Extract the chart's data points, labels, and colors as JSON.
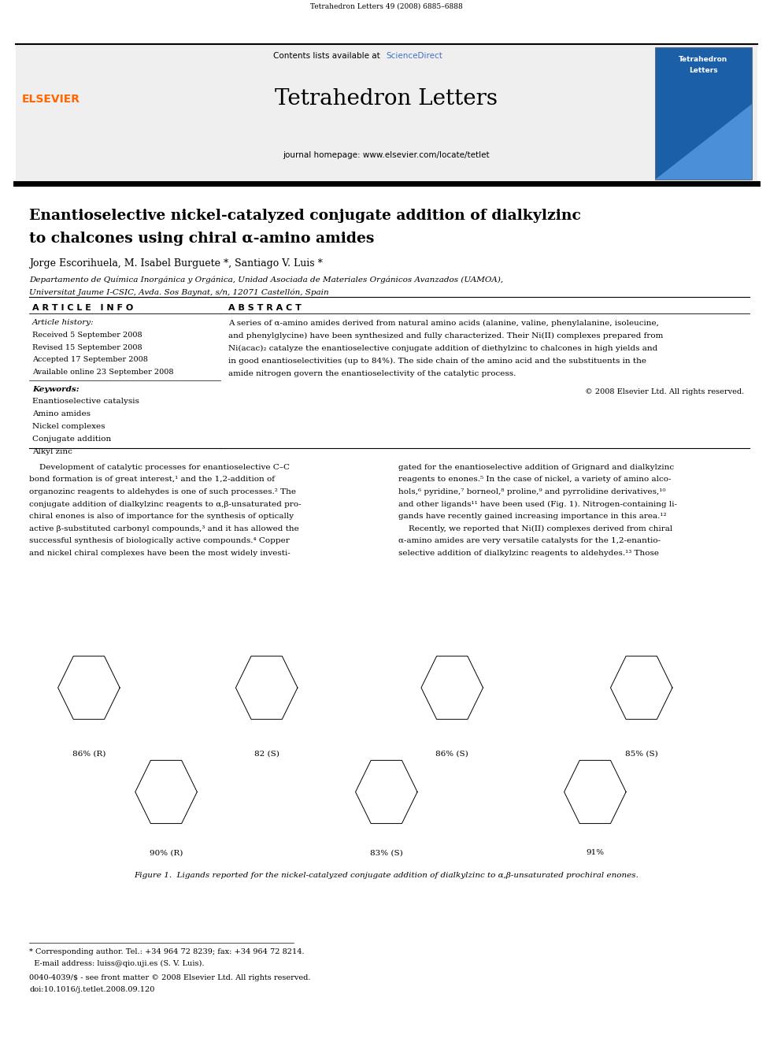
{
  "page_width": 9.92,
  "page_height": 13.23,
  "bg_color": "#ffffff",
  "header_top_text": "Tetrahedron Letters 49 (2008) 6885–6888",
  "journal_name": "Tetrahedron Letters",
  "journal_homepage": "journal homepage: www.elsevier.com/locate/tetlet",
  "sciencedirect_color": "#4472c4",
  "article_title_line1": "Enantioselective nickel-catalyzed conjugate addition of dialkylzinc",
  "article_title_line2": "to chalcones using chiral α-amino amides",
  "authors": "Jorge Escorihuela, M. Isabel Burguete *, Santiago V. Luis *",
  "affiliation1": "Departamento de Química Inorgánica y Orgánica, Unidad Asociada de Materiales Orgánicos Avanzados (UAMOA),",
  "affiliation2": "Universitat Jaume I-CSIC, Avda. Sos Baynat, s/n, 12071 Castellón, Spain",
  "article_info_header": "A R T I C L E   I N F O",
  "abstract_header": "A B S T R A C T",
  "article_history_label": "Article history:",
  "received": "Received 5 September 2008",
  "revised": "Revised 15 September 2008",
  "accepted": "Accepted 17 September 2008",
  "available": "Available online 23 September 2008",
  "keywords_label": "Keywords:",
  "keywords": [
    "Enantioselective catalysis",
    "Amino amides",
    "Nickel complexes",
    "Conjugate addition",
    "Alkyl zinc"
  ],
  "abstract_text_lines": [
    "A series of α-amino amides derived from natural amino acids (alanine, valine, phenylalanine, isoleucine,",
    "and phenylglycine) have been synthesized and fully characterized. Their Ni(II) complexes prepared from",
    "Ni(acac)₂ catalyze the enantioselective conjugate addition of diethylzinc to chalcones in high yields and",
    "in good enantioselectivities (up to 84%). The side chain of the amino acid and the substituents in the",
    "amide nitrogen govern the enantioselectivity of the catalytic process."
  ],
  "copyright": "© 2008 Elsevier Ltd. All rights reserved.",
  "body_col1_lines": [
    "    Development of catalytic processes for enantioselective C–C",
    "bond formation is of great interest,¹ and the 1,2-addition of",
    "organozinc reagents to aldehydes is one of such processes.² The",
    "conjugate addition of dialkylzinc reagents to α,β-unsaturated pro-",
    "chiral enones is also of importance for the synthesis of optically",
    "active β-substituted carbonyl compounds,³ and it has allowed the",
    "successful synthesis of biologically active compounds.⁴ Copper",
    "and nickel chiral complexes have been the most widely investi-"
  ],
  "body_col2_lines": [
    "gated for the enantioselective addition of Grignard and dialkylzinc",
    "reagents to enones.⁵ In the case of nickel, a variety of amino alco-",
    "hols,⁶ pyridine,⁷ borneol,⁸ proline,⁹ and pyrrolidine derivatives,¹⁰",
    "and other ligands¹¹ have been used (Fig. 1). Nitrogen-containing li-",
    "gands have recently gained increasing importance in this area.¹²",
    "    Recently, we reported that Ni(II) complexes derived from chiral",
    "α-amino amides are very versatile catalysts for the 1,2-enantio-",
    "selective addition of dialkylzinc reagents to aldehydes.¹³ Those"
  ],
  "figure_caption": "Figure 1.  Ligands reported for the nickel-catalyzed conjugate addition of dialkylzinc to α,β-unsaturated prochiral enones.",
  "footnote1": "* Corresponding author. Tel.: +34 964 72 8239; fax: +34 964 72 8214.",
  "footnote2": "  E-mail address: luiss@qio.uji.es (S. V. Luis).",
  "footnote3": "0040-4039/$ - see front matter © 2008 Elsevier Ltd. All rights reserved.",
  "footnote4": "doi:10.1016/j.tetlet.2008.09.120",
  "elsevier_color": "#ff6600",
  "header_gray": "#efefef",
  "fig1_top_labels": [
    "86% (R)",
    "82 (S)",
    "86% (S)",
    "85% (S)"
  ],
  "fig1_bot_labels": [
    "90% (R)",
    "83% (S)",
    "91%"
  ]
}
